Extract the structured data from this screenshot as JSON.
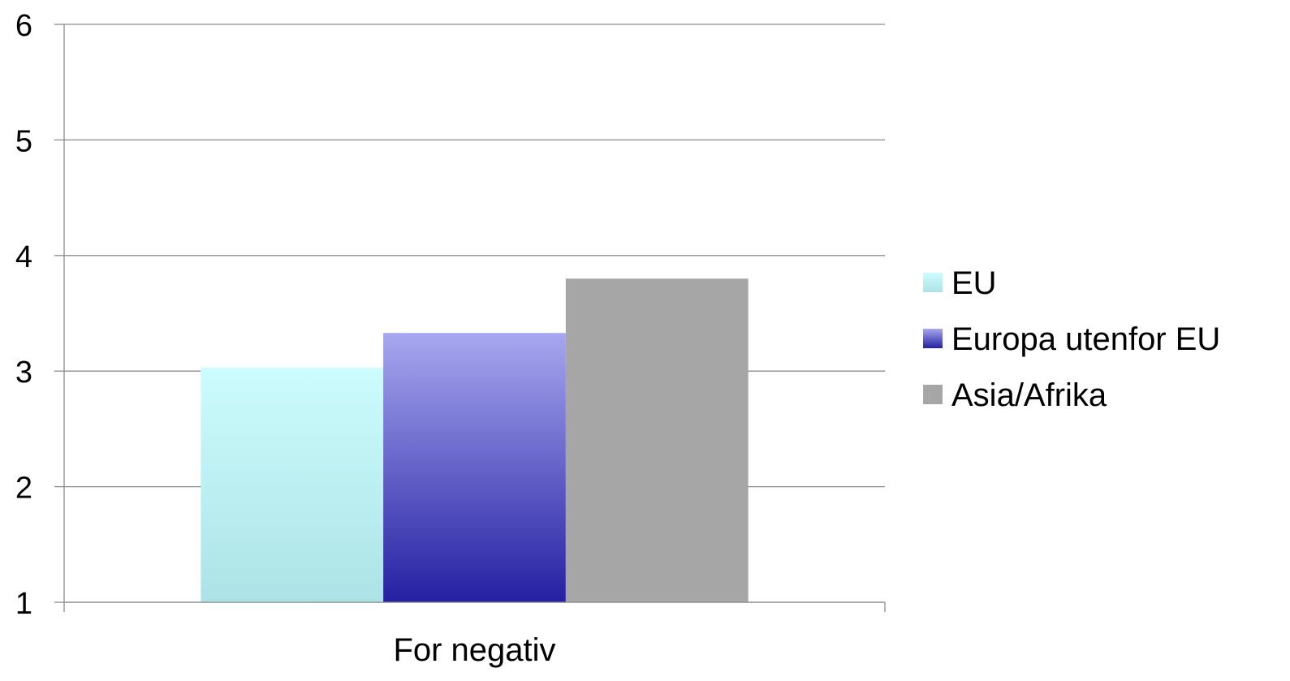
{
  "chart_data": {
    "type": "bar",
    "categories": [
      "For negativ"
    ],
    "series": [
      {
        "name": "EU",
        "values": [
          3.03
        ]
      },
      {
        "name": "Europa utenfor EU",
        "values": [
          3.33
        ]
      },
      {
        "name": "Asia/Afrika",
        "values": [
          3.8
        ]
      }
    ],
    "ylim": [
      1,
      6
    ],
    "yticks": [
      "1",
      "2",
      "3",
      "4",
      "5",
      "6"
    ],
    "grid": true,
    "legend_position": "right",
    "colors": {
      "EU": {
        "top": "#ccfcfd",
        "bottom": "#ade3e6"
      },
      "Europa utenfor EU": {
        "top": "#a7a7ef",
        "bottom": "#2420a2"
      },
      "Asia/Afrika": {
        "top": "#a6a6a6",
        "bottom": "#a6a6a6"
      }
    }
  }
}
